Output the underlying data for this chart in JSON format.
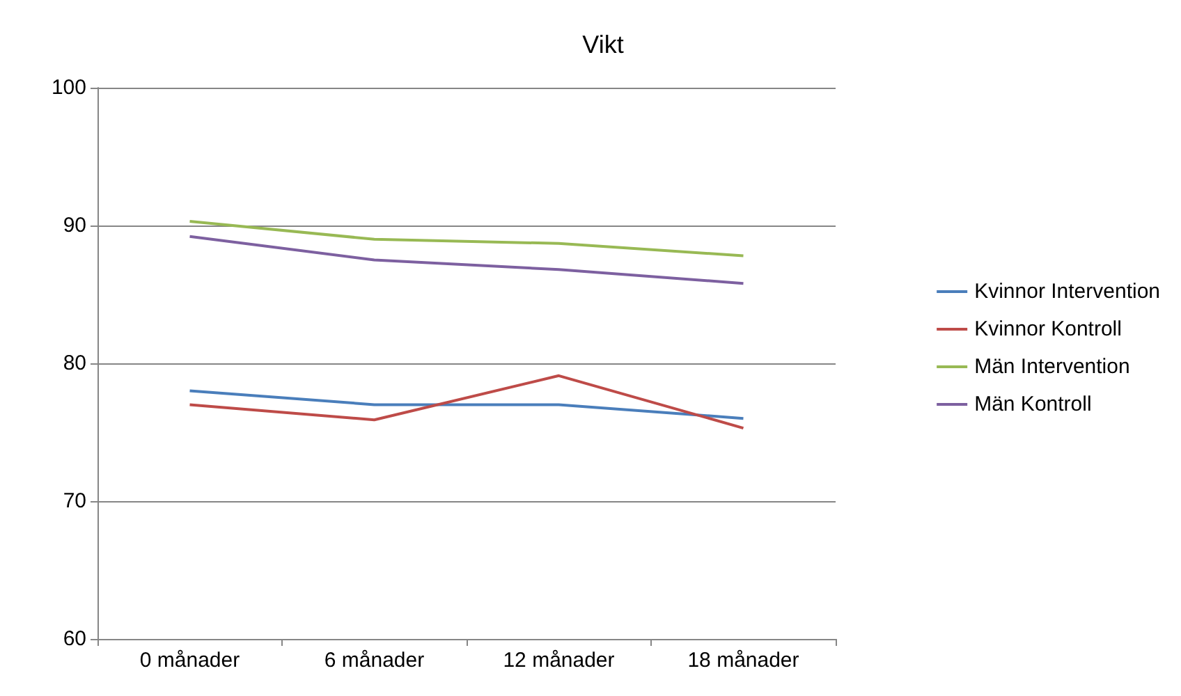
{
  "chart_data": {
    "type": "line",
    "title": "Vikt",
    "categories": [
      "0 månader",
      "6 månader",
      "12 månader",
      "18 månader"
    ],
    "series": [
      {
        "name": "Kvinnor Intervention",
        "color": "#4a7ebb",
        "values": [
          78.0,
          77.0,
          77.0,
          76.0
        ]
      },
      {
        "name": "Kvinnor Kontroll",
        "color": "#be4b48",
        "values": [
          77.0,
          75.9,
          79.1,
          75.3
        ]
      },
      {
        "name": "Män Intervention",
        "color": "#98b954",
        "values": [
          90.3,
          89.0,
          88.7,
          87.8
        ]
      },
      {
        "name": "Män Kontroll",
        "color": "#7d60a0",
        "values": [
          89.2,
          87.5,
          86.8,
          85.8
        ]
      }
    ],
    "ylim": [
      60,
      100
    ],
    "yticks": [
      60,
      70,
      80,
      90,
      100
    ],
    "grid": "y",
    "legend": "right",
    "marker": "none",
    "line_style": "solid"
  }
}
